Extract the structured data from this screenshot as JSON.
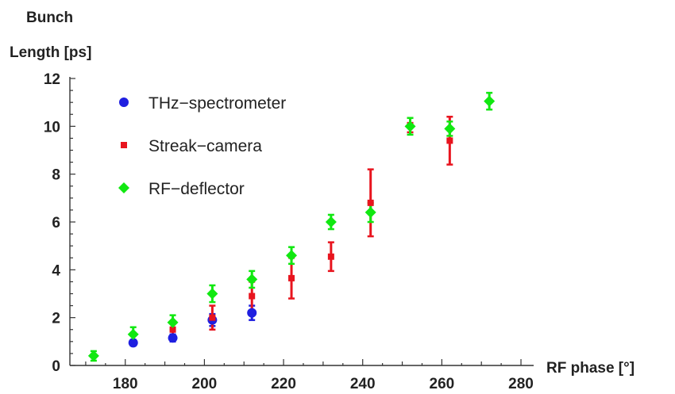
{
  "chart_data": {
    "type": "scatter",
    "title": "",
    "ylabel_line1": "Bunch",
    "ylabel_line2": "Length [ps]",
    "xlabel": "RF phase [°]",
    "xlim": [
      166,
      282
    ],
    "ylim": [
      0,
      12
    ],
    "xticks": [
      180,
      200,
      220,
      240,
      260,
      280
    ],
    "yticks": [
      0,
      2,
      4,
      6,
      8,
      10,
      12
    ],
    "grid": false,
    "legend_position": "top-left",
    "series": [
      {
        "name": "THz−spectrometer",
        "marker": "circle",
        "color": "#1f1fe0",
        "points": [
          {
            "x": 182,
            "y": 0.95,
            "err": 0.12
          },
          {
            "x": 192,
            "y": 1.15,
            "err": 0.15
          },
          {
            "x": 202,
            "y": 1.9,
            "err": 0.25
          },
          {
            "x": 212,
            "y": 2.2,
            "err": 0.3
          }
        ]
      },
      {
        "name": "Streak−camera",
        "marker": "square",
        "color": "#e8141e",
        "points": [
          {
            "x": 192,
            "y": 1.5,
            "err": 0.35
          },
          {
            "x": 202,
            "y": 2.0,
            "err": 0.5
          },
          {
            "x": 212,
            "y": 2.9,
            "err": 0.6
          },
          {
            "x": 222,
            "y": 3.65,
            "err": 0.85
          },
          {
            "x": 232,
            "y": 4.55,
            "err": 0.6
          },
          {
            "x": 242,
            "y": 6.8,
            "err": 1.4
          },
          {
            "x": 252,
            "y": 10.05,
            "err": 0.3
          },
          {
            "x": 262,
            "y": 9.4,
            "err": 1.0
          }
        ]
      },
      {
        "name": "RF−deflector",
        "marker": "diamond",
        "color": "#11e811",
        "points": [
          {
            "x": 172,
            "y": 0.4,
            "err": 0.2
          },
          {
            "x": 182,
            "y": 1.3,
            "err": 0.3
          },
          {
            "x": 192,
            "y": 1.8,
            "err": 0.3
          },
          {
            "x": 202,
            "y": 3.0,
            "err": 0.35
          },
          {
            "x": 212,
            "y": 3.6,
            "err": 0.35
          },
          {
            "x": 222,
            "y": 4.6,
            "err": 0.35
          },
          {
            "x": 232,
            "y": 6.0,
            "err": 0.3
          },
          {
            "x": 242,
            "y": 6.4,
            "err": 0.4
          },
          {
            "x": 252,
            "y": 10.0,
            "err": 0.35
          },
          {
            "x": 262,
            "y": 9.9,
            "err": 0.3
          },
          {
            "x": 272,
            "y": 11.05,
            "err": 0.35
          }
        ]
      }
    ]
  }
}
